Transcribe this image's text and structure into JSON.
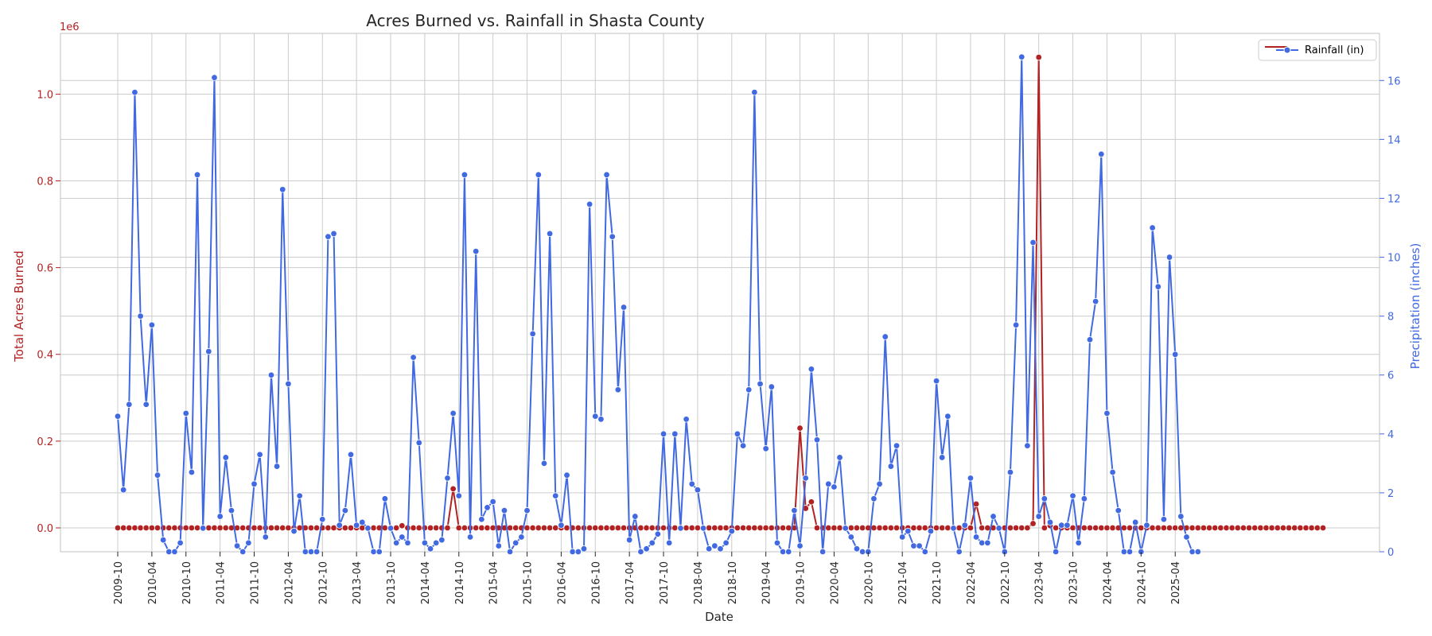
{
  "chart_data": {
    "type": "line",
    "title": "Acres Burned vs. Rainfall in Shasta County",
    "xlabel": "Date",
    "ylabel_left": "Total Acres Burned",
    "ylabel_right": "Precipitation (inches)",
    "left_offset_label": "1e6",
    "x_start": "2009-10",
    "x_end": "2025-08",
    "x_tick_labels": [
      "2009-10",
      "2010-04",
      "2010-10",
      "2011-04",
      "2011-10",
      "2012-04",
      "2012-10",
      "2013-04",
      "2013-10",
      "2014-04",
      "2014-10",
      "2015-04",
      "2015-10",
      "2016-04",
      "2016-10",
      "2017-04",
      "2017-10",
      "2018-04",
      "2018-10",
      "2019-04",
      "2019-10",
      "2020-04",
      "2020-10",
      "2021-04",
      "2021-10",
      "2022-04",
      "2022-10",
      "2023-04",
      "2023-10",
      "2024-04",
      "2024-10",
      "2025-04"
    ],
    "y_left_ticks": [
      "0.0",
      "0.2",
      "0.4",
      "0.6",
      "0.8",
      "1.0"
    ],
    "y_left_range": [
      -0.055,
      1.14
    ],
    "y_right_ticks": [
      "0",
      "2",
      "4",
      "6",
      "8",
      "10",
      "12",
      "14",
      "16"
    ],
    "y_right_range": [
      0,
      17.6
    ],
    "grid": true,
    "legend_position": "top-right",
    "series": [
      {
        "name": "Acres Burned",
        "axis": "left",
        "color": "#b22222",
        "values": [
          0,
          0,
          0,
          0,
          0,
          0,
          0,
          0,
          0,
          0,
          0,
          0,
          0,
          0,
          0,
          0,
          0,
          0,
          0,
          0,
          0,
          0,
          0,
          0,
          0,
          0,
          0,
          0,
          0,
          0,
          0,
          0,
          0,
          0,
          0,
          0,
          0,
          0,
          0,
          0,
          0,
          0,
          0,
          0,
          0,
          0,
          0,
          0,
          0,
          0,
          0.005,
          0,
          0,
          0,
          0,
          0,
          0,
          0,
          0,
          0.09,
          0,
          0,
          0,
          0,
          0,
          0,
          0,
          0,
          0,
          0,
          0,
          0,
          0,
          0,
          0,
          0,
          0,
          0,
          0,
          0,
          0,
          0,
          0,
          0,
          0,
          0,
          0,
          0,
          0,
          0,
          0,
          0,
          0,
          0,
          0,
          0,
          0,
          0,
          0,
          0,
          0,
          0,
          0,
          0,
          0,
          0,
          0,
          0,
          0,
          0,
          0,
          0,
          0,
          0,
          0,
          0,
          0,
          0,
          0,
          0,
          0.23,
          0.045,
          0.06,
          0,
          0,
          0,
          0,
          0,
          0,
          0,
          0,
          0,
          0,
          0,
          0,
          0,
          0,
          0,
          0,
          0,
          0,
          0,
          0,
          0,
          0,
          0,
          0,
          0,
          0,
          0,
          0,
          0.055,
          0,
          0,
          0,
          0,
          0,
          0,
          0,
          0,
          0,
          0.01,
          1.085,
          0,
          0.005,
          0,
          0,
          0,
          0,
          0,
          0,
          0,
          0,
          0,
          0,
          0,
          0,
          0,
          0,
          0,
          0,
          0,
          0,
          0,
          0,
          0,
          0,
          0,
          0,
          0,
          0,
          0,
          0,
          0,
          0,
          0,
          0,
          0,
          0,
          0,
          0,
          0,
          0,
          0,
          0,
          0,
          0,
          0,
          0,
          0,
          0,
          0,
          0
        ]
      },
      {
        "name": "Rainfall (in)",
        "axis": "right",
        "color": "#4169e1",
        "values": [
          4.6,
          2.1,
          5.0,
          15.6,
          8.0,
          5.0,
          7.7,
          2.6,
          0.4,
          0.0,
          0.0,
          0.3,
          4.7,
          2.7,
          12.8,
          0.8,
          6.8,
          16.1,
          1.2,
          3.2,
          1.4,
          0.2,
          0.0,
          0.3,
          2.3,
          3.3,
          0.5,
          6.0,
          2.9,
          12.3,
          5.7,
          0.7,
          1.9,
          0.0,
          0.0,
          0.0,
          1.1,
          10.7,
          10.8,
          0.9,
          1.4,
          3.3,
          0.9,
          1.0,
          0.8,
          0.0,
          0.0,
          1.8,
          0.8,
          0.3,
          0.5,
          0.3,
          6.6,
          3.7,
          0.3,
          0.1,
          0.3,
          0.4,
          2.5,
          4.7,
          1.9,
          12.8,
          0.5,
          10.2,
          1.1,
          1.5,
          1.7,
          0.2,
          1.4,
          0.0,
          0.3,
          0.5,
          1.4,
          7.4,
          12.8,
          3.0,
          10.8,
          1.9,
          0.9,
          2.6,
          0.0,
          0.0,
          0.1,
          11.8,
          4.6,
          4.5,
          12.8,
          10.7,
          5.5,
          8.3,
          0.4,
          1.2,
          0.0,
          0.1,
          0.3,
          0.6,
          4.0,
          0.3,
          4.0,
          0.8,
          4.5,
          2.3,
          2.1,
          0.8,
          0.1,
          0.2,
          0.1,
          0.3,
          0.7,
          4.0,
          3.6,
          5.5,
          15.6,
          5.7,
          3.5,
          5.6,
          0.3,
          0.0,
          0.0,
          1.4,
          0.2,
          2.5,
          6.2,
          3.8,
          0.0,
          2.3,
          2.2,
          3.2,
          0.8,
          0.5,
          0.1,
          0.0,
          0.0,
          1.8,
          2.3,
          7.3,
          2.9,
          3.6,
          0.5,
          0.7,
          0.2,
          0.2,
          0.0,
          0.7,
          5.8,
          3.2,
          4.6,
          0.8,
          0.0,
          0.9,
          2.5,
          0.5,
          0.3,
          0.3,
          1.2,
          0.8,
          0.0,
          2.7,
          7.7,
          16.8,
          3.6,
          10.5,
          1.2,
          1.8,
          1.0,
          0.0,
          0.9,
          0.9,
          1.9,
          0.3,
          1.8,
          7.2,
          8.5,
          13.5,
          4.7,
          2.7,
          1.4,
          0.0,
          0.0,
          1.0,
          0.0,
          0.9,
          11.0,
          9.0,
          1.1,
          10.0,
          6.7,
          1.2,
          0.5,
          0.0,
          0.0
        ]
      }
    ]
  }
}
